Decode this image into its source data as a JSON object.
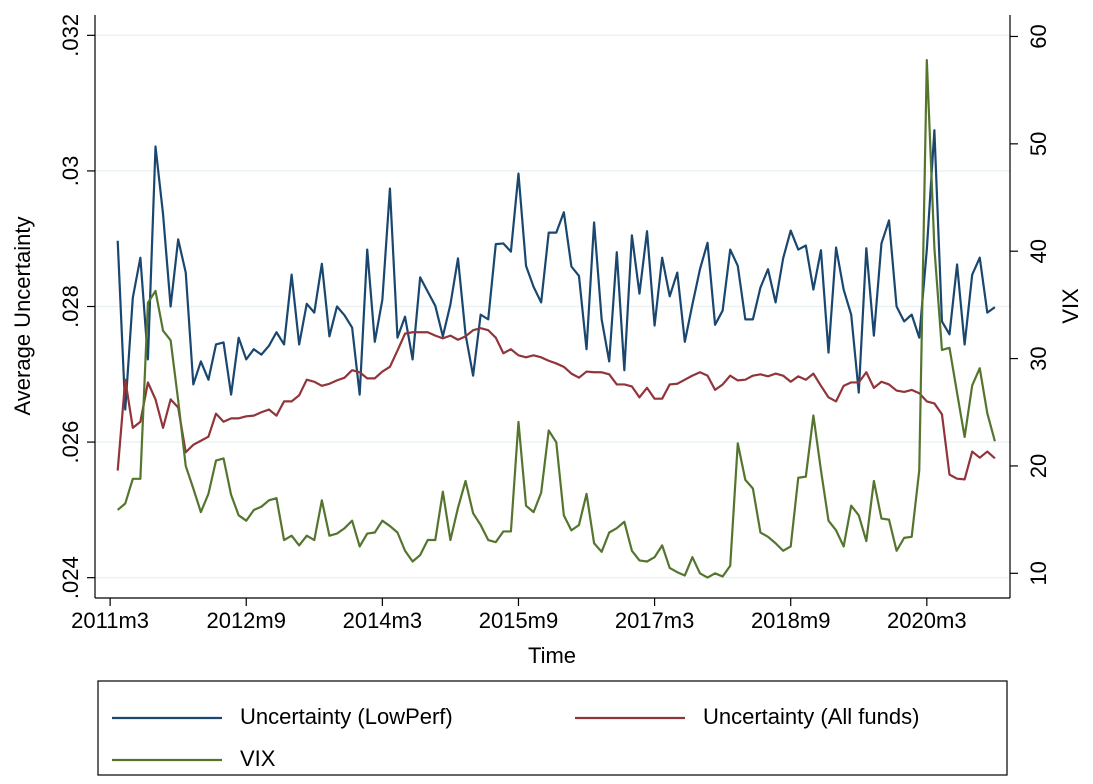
{
  "chart_data": {
    "type": "line",
    "x_label": "Time",
    "y_label": "Average Uncertainty",
    "y2_label": "VIX",
    "x": [
      "2011m4",
      "2011m5",
      "2011m6",
      "2011m7",
      "2011m8",
      "2011m9",
      "2011m10",
      "2011m11",
      "2011m12",
      "2012m1",
      "2012m2",
      "2012m3",
      "2012m4",
      "2012m5",
      "2012m6",
      "2012m7",
      "2012m8",
      "2012m9",
      "2012m10",
      "2012m11",
      "2012m12",
      "2013m1",
      "2013m2",
      "2013m3",
      "2013m4",
      "2013m5",
      "2013m6",
      "2013m7",
      "2013m8",
      "2013m9",
      "2013m10",
      "2013m11",
      "2013m12",
      "2014m1",
      "2014m2",
      "2014m3",
      "2014m4",
      "2014m5",
      "2014m6",
      "2014m7",
      "2014m8",
      "2014m9",
      "2014m10",
      "2014m11",
      "2014m12",
      "2015m1",
      "2015m2",
      "2015m3",
      "2015m4",
      "2015m5",
      "2015m6",
      "2015m7",
      "2015m8",
      "2015m9",
      "2015m10",
      "2015m11",
      "2015m12",
      "2016m1",
      "2016m2",
      "2016m3",
      "2016m4",
      "2016m5",
      "2016m6",
      "2016m7",
      "2016m8",
      "2016m9",
      "2016m10",
      "2016m11",
      "2016m12",
      "2017m1",
      "2017m2",
      "2017m3",
      "2017m4",
      "2017m5",
      "2017m6",
      "2017m7",
      "2017m8",
      "2017m9",
      "2017m10",
      "2017m11",
      "2017m12",
      "2018m1",
      "2018m2",
      "2018m3",
      "2018m4",
      "2018m5",
      "2018m6",
      "2018m7",
      "2018m8",
      "2018m9",
      "2018m10",
      "2018m11",
      "2018m12",
      "2019m1",
      "2019m2",
      "2019m3",
      "2019m4",
      "2019m5",
      "2019m6",
      "2019m7",
      "2019m8",
      "2019m9",
      "2019m10",
      "2019m11",
      "2019m12",
      "2020m1",
      "2020m2",
      "2020m3",
      "2020m4",
      "2020m5",
      "2020m6",
      "2020m7",
      "2020m8",
      "2020m9",
      "2020m10",
      "2020m11",
      "2020m12"
    ],
    "xlim": [
      "2011m1",
      "2021m2"
    ],
    "xticks": [
      "2011m3",
      "2012m9",
      "2014m3",
      "2015m9",
      "2017m3",
      "2018m9",
      "2020m3"
    ],
    "ylim": [
      0.0237,
      0.0323
    ],
    "yticks": [
      {
        "value": 0.024,
        "label": ".024"
      },
      {
        "value": 0.026,
        "label": ".026"
      },
      {
        "value": 0.028,
        "label": ".028"
      },
      {
        "value": 0.03,
        "label": ".03"
      },
      {
        "value": 0.032,
        "label": ".032"
      }
    ],
    "y2lim": [
      7.7,
      62
    ],
    "y2ticks": [
      10,
      20,
      30,
      40,
      50,
      60
    ],
    "grid": true,
    "series": [
      {
        "name": "Uncertainty (LowPerf)",
        "color": "#1a476f",
        "values": [
          0.02897,
          0.02648,
          0.02813,
          0.02872,
          0.02722,
          0.03036,
          0.02936,
          0.028,
          0.02899,
          0.0285,
          0.02685,
          0.02719,
          0.02692,
          0.02744,
          0.02747,
          0.0267,
          0.02754,
          0.02722,
          0.02737,
          0.02729,
          0.02742,
          0.02762,
          0.02744,
          0.02847,
          0.02744,
          0.02804,
          0.02791,
          0.02863,
          0.02756,
          0.028,
          0.02787,
          0.02769,
          0.0267,
          0.02884,
          0.02748,
          0.0281,
          0.02974,
          0.02754,
          0.02785,
          0.02722,
          0.02843,
          0.02822,
          0.02801,
          0.02756,
          0.02803,
          0.02871,
          0.02759,
          0.02698,
          0.02788,
          0.02781,
          0.02892,
          0.02893,
          0.02881,
          0.02996,
          0.0286,
          0.02829,
          0.02806,
          0.02909,
          0.02909,
          0.02939,
          0.02859,
          0.02845,
          0.02737,
          0.02924,
          0.02781,
          0.02719,
          0.0288,
          0.02706,
          0.02905,
          0.02819,
          0.02911,
          0.02772,
          0.02872,
          0.02815,
          0.0285,
          0.02748,
          0.02803,
          0.02855,
          0.02894,
          0.02773,
          0.02794,
          0.02884,
          0.0286,
          0.02781,
          0.02781,
          0.02828,
          0.02855,
          0.02806,
          0.02871,
          0.02912,
          0.02884,
          0.0289,
          0.02825,
          0.02883,
          0.02732,
          0.02887,
          0.02825,
          0.02788,
          0.02673,
          0.02886,
          0.02757,
          0.02893,
          0.02927,
          0.028,
          0.02778,
          0.02788,
          0.02754,
          0.02884,
          0.0306,
          0.02778,
          0.02759,
          0.02862,
          0.02744,
          0.02847,
          0.02872,
          0.02791,
          0.02799
        ]
      },
      {
        "name": "Uncertainty (All funds)",
        "color": "#90353b",
        "values": [
          0.02558,
          0.02692,
          0.02621,
          0.0263,
          0.02688,
          0.02663,
          0.02621,
          0.02663,
          0.02651,
          0.02585,
          0.02596,
          0.02602,
          0.02608,
          0.02642,
          0.0263,
          0.02635,
          0.02635,
          0.02638,
          0.02639,
          0.02644,
          0.02648,
          0.02639,
          0.0266,
          0.0266,
          0.02669,
          0.02692,
          0.02689,
          0.02683,
          0.02686,
          0.02691,
          0.02695,
          0.02706,
          0.02703,
          0.02694,
          0.02694,
          0.02704,
          0.02711,
          0.02735,
          0.0276,
          0.02762,
          0.02762,
          0.02762,
          0.02757,
          0.02753,
          0.02757,
          0.02751,
          0.02756,
          0.02765,
          0.02768,
          0.02765,
          0.02754,
          0.02731,
          0.02737,
          0.02728,
          0.02725,
          0.02728,
          0.02725,
          0.0272,
          0.02716,
          0.02711,
          0.02701,
          0.02695,
          0.02704,
          0.02703,
          0.02703,
          0.027,
          0.02685,
          0.02685,
          0.02682,
          0.02666,
          0.0268,
          0.02664,
          0.02664,
          0.02685,
          0.02686,
          0.02692,
          0.02698,
          0.02703,
          0.02698,
          0.02677,
          0.02685,
          0.02698,
          0.02691,
          0.02692,
          0.02698,
          0.027,
          0.02697,
          0.02701,
          0.02698,
          0.02689,
          0.02697,
          0.02692,
          0.02701,
          0.02683,
          0.02666,
          0.0266,
          0.02683,
          0.02688,
          0.02688,
          0.02703,
          0.0268,
          0.02689,
          0.02685,
          0.02676,
          0.02674,
          0.02677,
          0.02672,
          0.0266,
          0.02657,
          0.02641,
          0.02552,
          0.02546,
          0.02545,
          0.02586,
          0.02577,
          0.02586,
          0.02576
        ]
      },
      {
        "name": "VIX",
        "color": "#55752f",
        "axis": "y2",
        "values": [
          15.9,
          16.5,
          18.8,
          18.8,
          35.2,
          36.3,
          32.6,
          31.7,
          26.1,
          20.0,
          17.9,
          15.7,
          17.4,
          20.5,
          20.7,
          17.3,
          15.4,
          14.9,
          15.9,
          16.2,
          16.8,
          17.0,
          13.1,
          13.5,
          12.6,
          13.5,
          13.1,
          16.8,
          13.5,
          13.7,
          14.2,
          14.9,
          12.5,
          13.7,
          13.8,
          14.9,
          14.4,
          13.8,
          12.1,
          11.1,
          11.7,
          13.1,
          13.1,
          17.6,
          13.1,
          16.1,
          18.6,
          15.6,
          14.5,
          13.1,
          12.9,
          13.9,
          13.9,
          24.1,
          16.3,
          15.7,
          17.5,
          23.3,
          22.2,
          15.4,
          14.0,
          14.5,
          17.4,
          12.8,
          12.0,
          13.8,
          14.2,
          14.8,
          12.1,
          11.2,
          11.1,
          11.5,
          12.6,
          10.5,
          10.1,
          9.8,
          11.5,
          10.0,
          9.6,
          10.0,
          9.7,
          10.7,
          22.1,
          18.7,
          17.9,
          13.8,
          13.4,
          12.8,
          12.1,
          12.5,
          18.9,
          19.0,
          24.7,
          19.6,
          14.9,
          14.0,
          12.5,
          16.3,
          15.4,
          13.0,
          18.6,
          15.1,
          15.0,
          12.1,
          13.3,
          13.4,
          19.6,
          57.8,
          40.3,
          30.8,
          31.0,
          26.8,
          22.7,
          27.5,
          29.1,
          24.9,
          22.3
        ]
      }
    ]
  }
}
